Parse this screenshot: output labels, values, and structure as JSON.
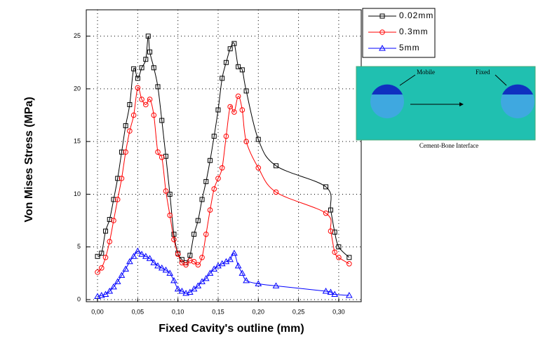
{
  "chart_data": {
    "type": "line",
    "xlabel": "Fixed Cavity's outline (mm)",
    "ylabel": "Von Mises Stress (MPa)",
    "xlim": [
      -0.014,
      0.328
    ],
    "ylim": [
      -0.2,
      27.5
    ],
    "xticks": [
      {
        "value": 0,
        "label": "0,00"
      },
      {
        "value": 0.05,
        "label": "0,05"
      },
      {
        "value": 0.1,
        "label": "0,10"
      },
      {
        "value": 0.15,
        "label": "0,15"
      },
      {
        "value": 0.2,
        "label": "0,20"
      },
      {
        "value": 0.25,
        "label": "0,25"
      },
      {
        "value": 0.3,
        "label": "0,30"
      }
    ],
    "yticks": [
      0,
      5,
      10,
      15,
      20,
      25
    ],
    "grid": true,
    "legend": "top-right",
    "annotations": [
      "Mobile",
      "Fixed",
      "Cement-Bone Interface"
    ],
    "series": [
      {
        "name": "0.02mm",
        "color": "#000000",
        "marker": "square",
        "x": [
          0,
          0.005,
          0.01,
          0.015,
          0.02,
          0.025,
          0.03,
          0.035,
          0.04,
          0.045,
          0.05,
          0.055,
          0.06,
          0.063,
          0.065,
          0.07,
          0.075,
          0.08,
          0.085,
          0.09,
          0.095,
          0.1,
          0.105,
          0.11,
          0.115,
          0.12,
          0.125,
          0.13,
          0.135,
          0.14,
          0.145,
          0.15,
          0.155,
          0.16,
          0.165,
          0.17,
          0.175,
          0.18,
          0.185,
          0.2,
          0.222,
          0.284,
          0.29,
          0.295,
          0.3,
          0.313
        ],
        "values": [
          4.1,
          4.4,
          6.5,
          7.6,
          9.5,
          11.5,
          14,
          16.5,
          18.5,
          21.9,
          21,
          22,
          22.8,
          25,
          23.5,
          22,
          20.2,
          17,
          13.6,
          10,
          6.2,
          4.4,
          3.8,
          3.5,
          4.2,
          6.2,
          7.5,
          9.5,
          11.2,
          13.2,
          15.5,
          18,
          21,
          22.5,
          23.8,
          24.3,
          22.1,
          21.8,
          19.8,
          15.2,
          12.7,
          10.7,
          8.5,
          6.4,
          5,
          4
        ]
      },
      {
        "name": "0.3mm",
        "color": "#ff0000",
        "marker": "circle",
        "x": [
          0,
          0.005,
          0.01,
          0.015,
          0.02,
          0.025,
          0.03,
          0.035,
          0.04,
          0.045,
          0.05,
          0.055,
          0.06,
          0.065,
          0.07,
          0.075,
          0.08,
          0.085,
          0.09,
          0.095,
          0.1,
          0.105,
          0.11,
          0.115,
          0.12,
          0.125,
          0.13,
          0.135,
          0.14,
          0.145,
          0.15,
          0.155,
          0.16,
          0.165,
          0.17,
          0.175,
          0.18,
          0.185,
          0.2,
          0.222,
          0.284,
          0.29,
          0.295,
          0.3,
          0.313
        ],
        "values": [
          2.6,
          3,
          4,
          5.5,
          7.5,
          9.5,
          11.5,
          14,
          16,
          17.5,
          20.1,
          19,
          18.5,
          19,
          17.5,
          14,
          13.5,
          10.3,
          8,
          5.7,
          4.3,
          3.5,
          3.3,
          3.7,
          3.6,
          3.3,
          4,
          6.2,
          8.5,
          10.5,
          11.5,
          12.5,
          15.5,
          18.3,
          17.8,
          19.3,
          18,
          15,
          12.5,
          10.2,
          8.2,
          6.5,
          4.5,
          4,
          3.4
        ]
      },
      {
        "name": "5mm",
        "color": "#0000ff",
        "marker": "triangle",
        "x": [
          0,
          0.005,
          0.01,
          0.015,
          0.02,
          0.025,
          0.03,
          0.035,
          0.04,
          0.045,
          0.05,
          0.055,
          0.06,
          0.065,
          0.07,
          0.075,
          0.08,
          0.085,
          0.09,
          0.095,
          0.1,
          0.105,
          0.11,
          0.115,
          0.12,
          0.125,
          0.13,
          0.135,
          0.14,
          0.145,
          0.15,
          0.155,
          0.16,
          0.165,
          0.17,
          0.175,
          0.18,
          0.185,
          0.2,
          0.222,
          0.284,
          0.29,
          0.295,
          0.313
        ],
        "values": [
          0.3,
          0.4,
          0.5,
          0.8,
          1.2,
          1.7,
          2.3,
          2.9,
          3.6,
          4.1,
          4.6,
          4.3,
          4.1,
          3.9,
          3.5,
          3.2,
          3,
          2.8,
          2.5,
          1.8,
          1,
          0.8,
          0.6,
          0.7,
          1,
          1.3,
          1.7,
          2,
          2.5,
          2.9,
          3.2,
          3.4,
          3.6,
          3.8,
          4.4,
          3.2,
          2.5,
          1.8,
          1.5,
          1.3,
          0.8,
          0.7,
          0.5,
          0.4
        ]
      }
    ]
  }
}
